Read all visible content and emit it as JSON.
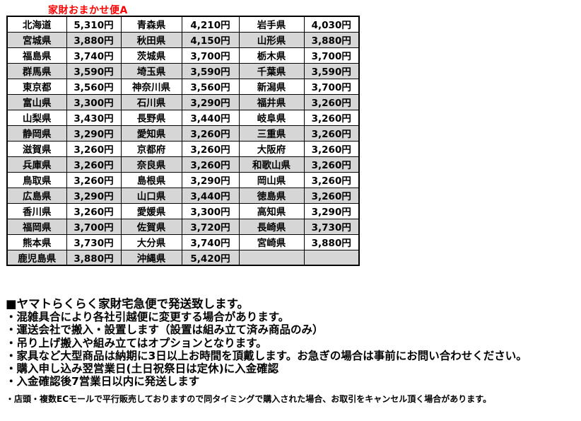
{
  "title": "家財おまかせ便A",
  "colors": {
    "title_red": "#FF0000",
    "row_shade": "#D6D6D6",
    "border": "#000000",
    "text": "#000000",
    "background": "#FFFFFF"
  },
  "table": {
    "columns": [
      "prefecture",
      "price",
      "prefecture",
      "price",
      "prefecture",
      "price"
    ],
    "rows": [
      [
        "北海道",
        "5,310円",
        "青森県",
        "4,210円",
        "岩手県",
        "4,030円"
      ],
      [
        "宮城県",
        "3,880円",
        "秋田県",
        "4,150円",
        "山形県",
        "3,880円"
      ],
      [
        "福島県",
        "3,740円",
        "茨城県",
        "3,700円",
        "栃木県",
        "3,700円"
      ],
      [
        "群馬県",
        "3,590円",
        "埼玉県",
        "3,590円",
        "千葉県",
        "3,590円"
      ],
      [
        "東京都",
        "3,560円",
        "神奈川県",
        "3,560円",
        "新潟県",
        "3,700円"
      ],
      [
        "富山県",
        "3,300円",
        "石川県",
        "3,290円",
        "福井県",
        "3,260円"
      ],
      [
        "山梨県",
        "3,430円",
        "長野県",
        "3,440円",
        "岐阜県",
        "3,260円"
      ],
      [
        "静岡県",
        "3,290円",
        "愛知県",
        "3,260円",
        "三重県",
        "3,260円"
      ],
      [
        "滋賀県",
        "3,260円",
        "京都府",
        "3,260円",
        "大阪府",
        "3,260円"
      ],
      [
        "兵庫県",
        "3,260円",
        "奈良県",
        "3,260円",
        "和歌山県",
        "3,260円"
      ],
      [
        "鳥取県",
        "3,260円",
        "島根県",
        "3,290円",
        "岡山県",
        "3,260円"
      ],
      [
        "広島県",
        "3,290円",
        "山口県",
        "3,440円",
        "徳島県",
        "3,260円"
      ],
      [
        "香川県",
        "3,260円",
        "愛媛県",
        "3,300円",
        "高知県",
        "3,290円"
      ],
      [
        "福岡県",
        "3,700円",
        "佐賀県",
        "3,720円",
        "長崎県",
        "3,730円"
      ],
      [
        "熊本県",
        "3,730円",
        "大分県",
        "3,740円",
        "宮崎県",
        "3,880円"
      ],
      [
        "鹿児島県",
        "3,880円",
        "沖縄県",
        "5,420円",
        "",
        ""
      ]
    ]
  },
  "notes": {
    "headline": "■ヤマトらくらく家財宅急便で発送致します。",
    "bullets": [
      "・混雑具合により各社引越便に変更する場合があります。",
      "・運送会社で搬入・設置します（設置は組み立て済み商品のみ）",
      "・吊り上げ搬入や組み立てはオプションとなります。",
      "・家具など大型商品は納期に3日以上お時間を頂戴します。お急ぎの場合は事前にお問い合わせください。",
      "・購入申し込み翌営業日(土日祝祭日は定休)に入金確認",
      "・入金確認後7営業日以内に発送します"
    ],
    "small_note": "・店頭・複数ECモールで平行販売しておりますので同タイミングで購入された場合、お取引をキャンセル頂く場合があります。"
  }
}
